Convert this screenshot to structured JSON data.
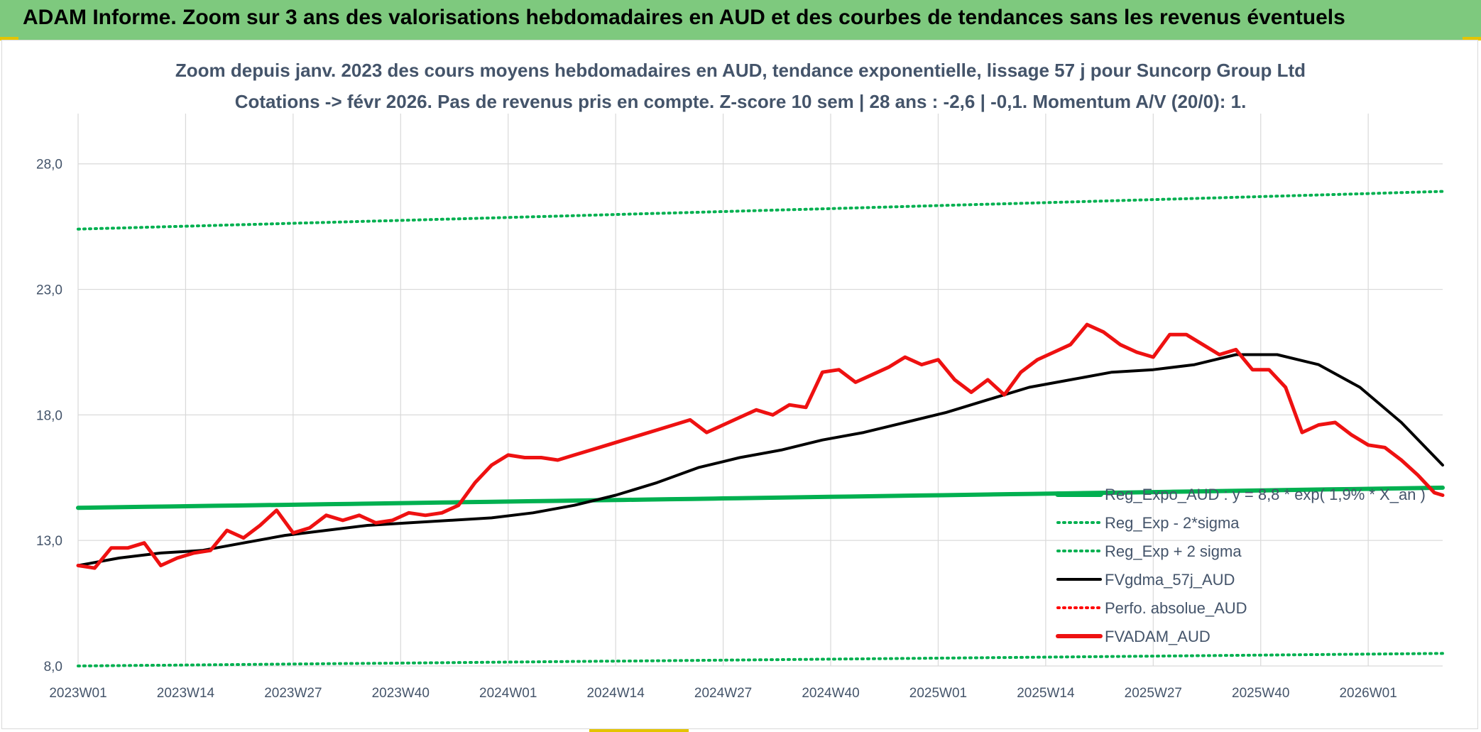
{
  "header": {
    "title": "ADAM Informe. Zoom sur 3 ans des valorisations hebdomadaires en AUD et des courbes de tendances sans les revenus éventuels"
  },
  "chart_data": {
    "type": "line",
    "title_line1": "Zoom depuis janv. 2023 des cours moyens hebdomadaires en AUD, tendance exponentielle, lissage 57 j pour Suncorp Group Ltd",
    "title_line2": "Cotations -> févr 2026. Pas de revenus pris en compte. Z-score 10 sem | 28 ans : -2,6 | -0,1. Momentum A/V (20/0): 1.",
    "xlabel": "",
    "ylabel": "",
    "x_tick_labels": [
      "2023W01",
      "2023W14",
      "2023W27",
      "2023W40",
      "2024W01",
      "2024W14",
      "2024W27",
      "2024W40",
      "2025W01",
      "2025W14",
      "2025W27",
      "2025W40",
      "2026W01"
    ],
    "x_range": [
      0,
      165
    ],
    "ylim": [
      8,
      30
    ],
    "y_ticks": [
      8,
      13,
      18,
      23,
      28
    ],
    "y_tick_labels": [
      "8,0",
      "13,0",
      "18,0",
      "23,0",
      "28,0"
    ],
    "grid": true,
    "legend_position": "bottom-right",
    "series": [
      {
        "name": "Reg_Expo_AUD : y = 8,8 * exp( 1,9% *  X_an )",
        "style": "solid-thick",
        "color": "#00b050",
        "x": [
          0,
          165
        ],
        "y": [
          14.3,
          15.1
        ]
      },
      {
        "name": "Reg_Exp - 2*sigma",
        "style": "dotted",
        "color": "#00b050",
        "x": [
          0,
          165
        ],
        "y": [
          8.0,
          8.5
        ]
      },
      {
        "name": "Reg_Exp + 2 sigma",
        "style": "dotted",
        "color": "#00b050",
        "x": [
          0,
          165
        ],
        "y": [
          25.4,
          26.9
        ]
      },
      {
        "name": "FVgdma_57j_AUD",
        "style": "solid",
        "color": "#000000",
        "x": [
          0,
          5,
          10,
          15,
          20,
          25,
          30,
          35,
          40,
          45,
          50,
          55,
          60,
          65,
          70,
          75,
          80,
          85,
          90,
          95,
          100,
          105,
          110,
          115,
          120,
          125,
          130,
          135,
          140,
          145,
          150,
          155,
          160,
          165
        ],
        "y": [
          12.0,
          12.3,
          12.5,
          12.6,
          12.9,
          13.2,
          13.4,
          13.6,
          13.7,
          13.8,
          13.9,
          14.1,
          14.4,
          14.8,
          15.3,
          15.9,
          16.3,
          16.6,
          17.0,
          17.3,
          17.7,
          18.1,
          18.6,
          19.1,
          19.4,
          19.7,
          19.8,
          20.0,
          20.4,
          20.4,
          20.0,
          19.1,
          17.7,
          16.0
        ]
      },
      {
        "name": "Perfo. absolue_AUD",
        "style": "dotted",
        "color": "#ff0000",
        "x": [],
        "y": []
      },
      {
        "name": "FVADAM_AUD",
        "style": "solid-thick",
        "color": "#ee1111",
        "x": [
          0,
          2,
          4,
          6,
          8,
          10,
          12,
          14,
          16,
          18,
          20,
          22,
          24,
          26,
          28,
          30,
          32,
          34,
          36,
          38,
          40,
          42,
          44,
          46,
          48,
          50,
          52,
          54,
          56,
          58,
          60,
          62,
          64,
          66,
          68,
          70,
          72,
          74,
          76,
          78,
          80,
          82,
          84,
          86,
          88,
          90,
          92,
          94,
          96,
          98,
          100,
          102,
          104,
          106,
          108,
          110,
          112,
          114,
          116,
          118,
          120,
          122,
          124,
          126,
          128,
          130,
          132,
          134,
          136,
          138,
          140,
          142,
          144,
          146,
          148,
          150,
          152,
          154,
          156,
          158,
          160,
          162,
          164,
          165
        ],
        "y": [
          12.0,
          11.9,
          12.7,
          12.7,
          12.9,
          12.0,
          12.3,
          12.5,
          12.6,
          13.4,
          13.1,
          13.6,
          14.2,
          13.3,
          13.5,
          14.0,
          13.8,
          14.0,
          13.7,
          13.8,
          14.1,
          14.0,
          14.1,
          14.4,
          15.3,
          16.0,
          16.4,
          16.3,
          16.3,
          16.2,
          16.4,
          16.6,
          16.8,
          17.0,
          17.2,
          17.4,
          17.6,
          17.8,
          17.3,
          17.6,
          17.9,
          18.2,
          18.0,
          18.4,
          18.3,
          19.7,
          19.8,
          19.3,
          19.6,
          19.9,
          20.3,
          20.0,
          20.2,
          19.4,
          18.9,
          19.4,
          18.8,
          19.7,
          20.2,
          20.5,
          20.8,
          21.6,
          21.3,
          20.8,
          20.5,
          20.3,
          21.2,
          21.2,
          20.8,
          20.4,
          20.6,
          19.8,
          19.8,
          19.1,
          17.3,
          17.6,
          17.7,
          17.2,
          16.8,
          16.7,
          16.2,
          15.6,
          14.9,
          14.8
        ]
      }
    ]
  }
}
